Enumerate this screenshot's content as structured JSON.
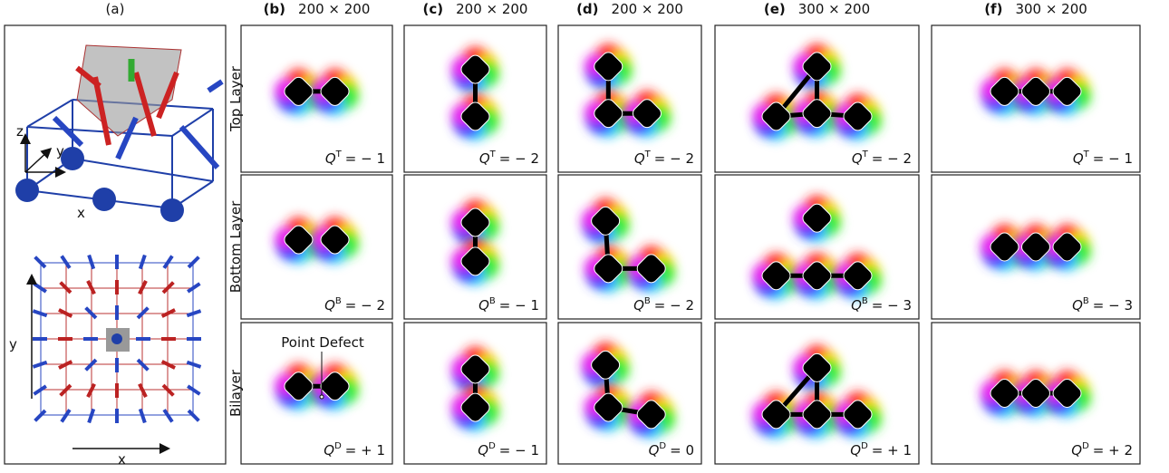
{
  "header": {
    "a": "(a)",
    "panels": [
      {
        "label": "(b)",
        "size": "200 × 200"
      },
      {
        "label": "(c)",
        "size": "200 × 200"
      },
      {
        "label": "(d)",
        "size": "200 × 200"
      },
      {
        "label": "(e)",
        "size": "300 × 200"
      },
      {
        "label": "(f)",
        "size": "300 × 200"
      }
    ]
  },
  "rows": [
    "Top Layer",
    "Bottom Layer",
    "Bilayer"
  ],
  "symbol": "Q",
  "charges": [
    [
      {
        "sup": "T",
        "value": "= − 1"
      },
      {
        "sup": "B",
        "value": "= − 2"
      },
      {
        "sup": "D",
        "value": "= + 1"
      }
    ],
    [
      {
        "sup": "T",
        "value": "= − 2"
      },
      {
        "sup": "B",
        "value": "= − 1"
      },
      {
        "sup": "D",
        "value": "= − 1"
      }
    ],
    [
      {
        "sup": "T",
        "value": "= − 2"
      },
      {
        "sup": "B",
        "value": "= − 2"
      },
      {
        "sup": "D",
        "value": "= 0"
      }
    ],
    [
      {
        "sup": "T",
        "value": "= − 2"
      },
      {
        "sup": "B",
        "value": "= − 3"
      },
      {
        "sup": "D",
        "value": "= + 1"
      }
    ],
    [
      {
        "sup": "T",
        "value": "= − 1"
      },
      {
        "sup": "B",
        "value": "= − 3"
      },
      {
        "sup": "D",
        "value": "= + 2"
      }
    ]
  ],
  "axes": {
    "cube": [
      "z",
      "y",
      "x"
    ],
    "lattice": [
      "y",
      "x"
    ]
  },
  "annotation": "Point Defect"
}
